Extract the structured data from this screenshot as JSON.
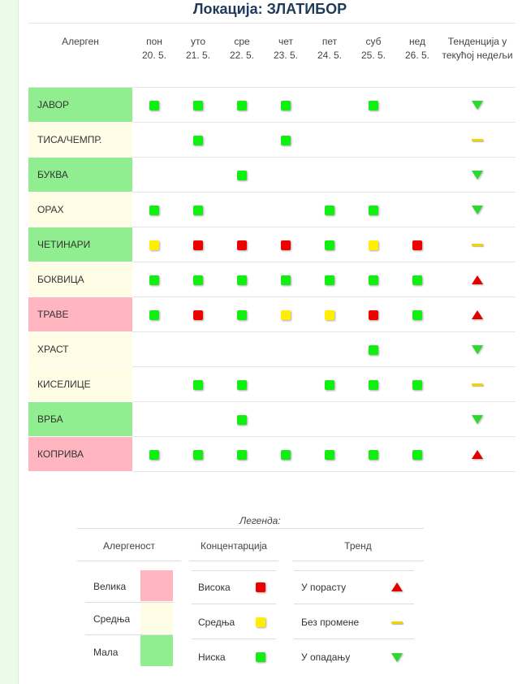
{
  "title": "Локација: ЗЛАТИБОР",
  "colors": {
    "high_bg": "#ffb6c1",
    "medium_bg": "#fffde6",
    "low_bg": "#90ee90",
    "square_high": "#ee0000",
    "square_medium": "#ffee00",
    "square_low": "#11ee11"
  },
  "table": {
    "header_allergen": "Алерген",
    "days": [
      {
        "name": "пон",
        "date": "20. 5."
      },
      {
        "name": "уто",
        "date": "21. 5."
      },
      {
        "name": "сре",
        "date": "22. 5."
      },
      {
        "name": "чет",
        "date": "23. 5."
      },
      {
        "name": "пет",
        "date": "24. 5."
      },
      {
        "name": "суб",
        "date": "25. 5."
      },
      {
        "name": "нед",
        "date": "26. 5."
      }
    ],
    "header_trend": "Тенденција у текућој недељи",
    "rows": [
      {
        "name": "ЈАВОР",
        "level": "low",
        "values": [
          "low",
          "low",
          "low",
          "low",
          "",
          "low",
          ""
        ],
        "trend": "down"
      },
      {
        "name": "ТИСА/ЧЕМПР.",
        "level": "medium",
        "values": [
          "",
          "low",
          "",
          "low",
          "",
          "",
          ""
        ],
        "trend": "flat"
      },
      {
        "name": "БУКВА",
        "level": "low",
        "values": [
          "",
          "",
          "low",
          "",
          "",
          "",
          ""
        ],
        "trend": "down"
      },
      {
        "name": "ОРАХ",
        "level": "medium",
        "values": [
          "low",
          "low",
          "",
          "",
          "low",
          "low",
          ""
        ],
        "trend": "down"
      },
      {
        "name": "ЧЕТИНАРИ",
        "level": "low",
        "values": [
          "medium",
          "high",
          "high",
          "high",
          "low",
          "medium",
          "high"
        ],
        "trend": "flat"
      },
      {
        "name": "БОКВИЦА",
        "level": "medium",
        "values": [
          "low",
          "low",
          "low",
          "low",
          "low",
          "low",
          "low"
        ],
        "trend": "up"
      },
      {
        "name": "ТРАВЕ",
        "level": "high",
        "values": [
          "low",
          "high",
          "low",
          "medium",
          "medium",
          "high",
          "low"
        ],
        "trend": "up"
      },
      {
        "name": "ХРАСТ",
        "level": "medium",
        "values": [
          "",
          "",
          "",
          "",
          "",
          "low",
          ""
        ],
        "trend": "down"
      },
      {
        "name": "КИСЕЛИЦЕ",
        "level": "medium",
        "values": [
          "",
          "low",
          "low",
          "",
          "low",
          "low",
          "low"
        ],
        "trend": "flat"
      },
      {
        "name": "ВРБА",
        "level": "low",
        "values": [
          "",
          "",
          "low",
          "",
          "",
          "",
          ""
        ],
        "trend": "down"
      },
      {
        "name": "КОПРИВА",
        "level": "high",
        "values": [
          "low",
          "low",
          "low",
          "low",
          "low",
          "low",
          "low"
        ],
        "trend": "up"
      }
    ]
  },
  "legend": {
    "title": "Легенда:",
    "allergenicity": {
      "header": "Алергеност",
      "items": [
        {
          "label": "Велика",
          "level": "high"
        },
        {
          "label": "Средња",
          "level": "medium"
        },
        {
          "label": "Мала",
          "level": "low"
        }
      ]
    },
    "concentration": {
      "header": "Концентарција",
      "items": [
        {
          "label": "Висока",
          "level": "high"
        },
        {
          "label": "Средња",
          "level": "medium"
        },
        {
          "label": "Ниска",
          "level": "low"
        }
      ]
    },
    "trend": {
      "header": "Тренд",
      "items": [
        {
          "label": "У порасту",
          "trend": "up"
        },
        {
          "label": "Без промене",
          "trend": "flat"
        },
        {
          "label": "У опадању",
          "trend": "down"
        }
      ]
    }
  }
}
